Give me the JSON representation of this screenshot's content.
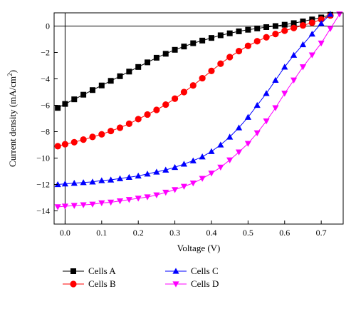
{
  "chart_data": {
    "type": "line",
    "xlabel": "Voltage (V)",
    "ylabel_main": "Current density (mA/cm",
    "ylabel_sup": "2",
    "ylabel_end": ")",
    "xlim": [
      -0.03,
      0.76
    ],
    "ylim": [
      -15,
      1
    ],
    "xticks": [
      0.0,
      0.1,
      0.2,
      0.3,
      0.4,
      0.5,
      0.6,
      0.7
    ],
    "xtick_labels": [
      "0.0",
      "0.1",
      "0.2",
      "0.3",
      "0.4",
      "0.5",
      "0.6",
      "0.7"
    ],
    "yticks": [
      0,
      -2,
      -4,
      -6,
      -8,
      -10,
      -12,
      -14
    ],
    "ytick_labels": [
      "0",
      "−2",
      "−4",
      "−6",
      "−8",
      "−10",
      "−12",
      "−14"
    ],
    "zero_lines": true,
    "legend_position": "bottom",
    "series": [
      {
        "name": "Cells A",
        "color": "#000000",
        "marker": "square",
        "x": [
          -0.02,
          0.0,
          0.025,
          0.05,
          0.075,
          0.1,
          0.125,
          0.15,
          0.175,
          0.2,
          0.225,
          0.25,
          0.275,
          0.3,
          0.325,
          0.35,
          0.375,
          0.4,
          0.425,
          0.45,
          0.475,
          0.5,
          0.525,
          0.55,
          0.575,
          0.6,
          0.625,
          0.65,
          0.675,
          0.7,
          0.725
        ],
        "y": [
          -6.2,
          -5.9,
          -5.55,
          -5.2,
          -4.85,
          -4.5,
          -4.15,
          -3.8,
          -3.45,
          -3.1,
          -2.75,
          -2.4,
          -2.1,
          -1.8,
          -1.55,
          -1.3,
          -1.1,
          -0.9,
          -0.7,
          -0.55,
          -0.4,
          -0.28,
          -0.18,
          -0.08,
          0.0,
          0.1,
          0.22,
          0.35,
          0.5,
          0.65,
          0.85
        ]
      },
      {
        "name": "Cells B",
        "color": "#ff0000",
        "marker": "circle",
        "x": [
          -0.02,
          0.0,
          0.025,
          0.05,
          0.075,
          0.1,
          0.125,
          0.15,
          0.175,
          0.2,
          0.225,
          0.25,
          0.275,
          0.3,
          0.325,
          0.35,
          0.375,
          0.4,
          0.425,
          0.45,
          0.475,
          0.5,
          0.525,
          0.55,
          0.575,
          0.6,
          0.625,
          0.65,
          0.675,
          0.7,
          0.725
        ],
        "y": [
          -9.1,
          -8.95,
          -8.8,
          -8.6,
          -8.4,
          -8.2,
          -7.95,
          -7.7,
          -7.4,
          -7.05,
          -6.7,
          -6.35,
          -5.95,
          -5.5,
          -5.0,
          -4.5,
          -3.95,
          -3.4,
          -2.85,
          -2.35,
          -1.9,
          -1.5,
          -1.15,
          -0.85,
          -0.6,
          -0.35,
          -0.15,
          0.05,
          0.25,
          0.5,
          0.8
        ]
      },
      {
        "name": "Cells C",
        "color": "#0000ff",
        "marker": "triangle-up",
        "x": [
          -0.02,
          0.0,
          0.025,
          0.05,
          0.075,
          0.1,
          0.125,
          0.15,
          0.175,
          0.2,
          0.225,
          0.25,
          0.275,
          0.3,
          0.325,
          0.35,
          0.375,
          0.4,
          0.425,
          0.45,
          0.475,
          0.5,
          0.525,
          0.55,
          0.575,
          0.6,
          0.625,
          0.65,
          0.675,
          0.7,
          0.725
        ],
        "y": [
          -12.0,
          -11.95,
          -11.9,
          -11.85,
          -11.8,
          -11.7,
          -11.65,
          -11.55,
          -11.45,
          -11.35,
          -11.2,
          -11.05,
          -10.9,
          -10.7,
          -10.45,
          -10.2,
          -9.9,
          -9.5,
          -9.0,
          -8.4,
          -7.7,
          -6.9,
          -6.0,
          -5.1,
          -4.1,
          -3.1,
          -2.2,
          -1.4,
          -0.6,
          0.2,
          0.9
        ]
      },
      {
        "name": "Cells D",
        "color": "#ff00ff",
        "marker": "triangle-down",
        "x": [
          -0.02,
          0.0,
          0.025,
          0.05,
          0.075,
          0.1,
          0.125,
          0.15,
          0.175,
          0.2,
          0.225,
          0.25,
          0.275,
          0.3,
          0.325,
          0.35,
          0.375,
          0.4,
          0.425,
          0.45,
          0.475,
          0.5,
          0.525,
          0.55,
          0.575,
          0.6,
          0.625,
          0.65,
          0.675,
          0.7,
          0.725,
          0.75
        ],
        "y": [
          -13.7,
          -13.65,
          -13.6,
          -13.55,
          -13.5,
          -13.4,
          -13.35,
          -13.25,
          -13.15,
          -13.05,
          -12.95,
          -12.8,
          -12.6,
          -12.4,
          -12.15,
          -11.9,
          -11.55,
          -11.15,
          -10.7,
          -10.15,
          -9.55,
          -8.9,
          -8.1,
          -7.2,
          -6.2,
          -5.1,
          -4.1,
          -3.1,
          -2.2,
          -1.3,
          -0.2,
          0.9
        ]
      }
    ]
  }
}
